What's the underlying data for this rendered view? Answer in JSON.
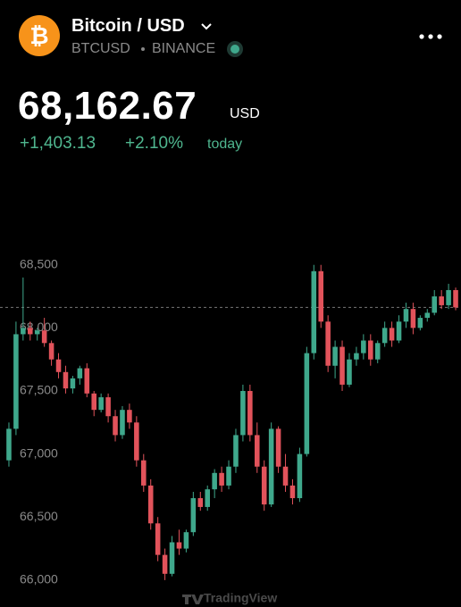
{
  "header": {
    "logo_symbol": "₿",
    "title": "Bitcoin / USD",
    "symbol": "BTCUSD",
    "exchange": "BINANCE",
    "price": "68,162.67",
    "currency": "USD",
    "change": "+1,403.13",
    "change_percent": "+2.10%",
    "period": "today"
  },
  "chart_data": {
    "type": "candlestick",
    "up_color": "#3fa88c",
    "down_color": "#e2535b",
    "price_line": 68162.67,
    "watermark": "TradingView",
    "ylim": [
      65900,
      68760
    ],
    "yticks": [
      {
        "value": 66000,
        "label": "66,000"
      },
      {
        "value": 66500,
        "label": "66,500"
      },
      {
        "value": 67000,
        "label": "67,000"
      },
      {
        "value": 67500,
        "label": "67,500"
      },
      {
        "value": 68000,
        "label": "68,000"
      },
      {
        "value": 68500,
        "label": "68,500"
      }
    ],
    "open": [
      66950,
      67200,
      67950,
      68000,
      67950,
      67980,
      67880,
      67750,
      67650,
      67520,
      67600,
      67680,
      67480,
      67350,
      67450,
      67300,
      67150,
      67350,
      67250,
      66950,
      66750,
      66450,
      66200,
      66050,
      66300,
      66250,
      66380,
      66650,
      66580,
      66720,
      66850,
      66750,
      66900,
      67150,
      67500,
      67150,
      66900,
      66600,
      67200,
      66900,
      66750,
      66650,
      67000,
      67800,
      68450,
      68050,
      67700,
      67850,
      67550,
      67750,
      67800,
      67900,
      67750,
      67880,
      68000,
      67900,
      68050,
      68150,
      68000,
      68080,
      68120,
      68250,
      68180,
      68300
    ],
    "high": [
      67250,
      68050,
      68400,
      68050,
      68000,
      68080,
      67900,
      67800,
      67700,
      67620,
      67700,
      67720,
      67500,
      67480,
      67480,
      67350,
      67380,
      67400,
      67300,
      67000,
      66800,
      66500,
      66250,
      66350,
      66400,
      66400,
      66700,
      66700,
      66750,
      66880,
      66900,
      66950,
      67200,
      67550,
      67550,
      67250,
      66950,
      67250,
      67220,
      67000,
      66800,
      67050,
      67850,
      68500,
      68500,
      68100,
      67900,
      67900,
      67800,
      67850,
      67950,
      67950,
      67900,
      68050,
      68050,
      68100,
      68200,
      68200,
      68100,
      68150,
      68300,
      68300,
      68350,
      68320
    ],
    "low": [
      66900,
      67150,
      67900,
      67900,
      67900,
      67850,
      67700,
      67600,
      67480,
      67480,
      67550,
      67450,
      67300,
      67330,
      67250,
      67100,
      67120,
      67200,
      66900,
      66700,
      66400,
      66150,
      66000,
      66030,
      66200,
      66220,
      66350,
      66550,
      66550,
      66650,
      66700,
      66720,
      66850,
      67100,
      67100,
      66850,
      66550,
      66580,
      66850,
      66700,
      66600,
      66620,
      66980,
      67750,
      68000,
      67650,
      67600,
      67500,
      67530,
      67700,
      67750,
      67700,
      67720,
      67850,
      67850,
      67880,
      68000,
      67950,
      67980,
      68050,
      68100,
      68150,
      68150,
      68140
    ],
    "close": [
      67200,
      67950,
      68000,
      67950,
      67980,
      67880,
      67750,
      67650,
      67520,
      67600,
      67680,
      67480,
      67350,
      67450,
      67300,
      67150,
      67350,
      67250,
      66950,
      66750,
      66450,
      66200,
      66050,
      66300,
      66250,
      66380,
      66650,
      66580,
      66720,
      66850,
      66750,
      66900,
      67150,
      67500,
      67150,
      66900,
      66600,
      67200,
      66900,
      66750,
      66650,
      67000,
      67800,
      68450,
      68050,
      67700,
      67850,
      67550,
      67750,
      67800,
      67900,
      67750,
      67880,
      68000,
      67900,
      68050,
      68150,
      68000,
      68080,
      68120,
      68250,
      68180,
      68300,
      68162.67
    ]
  }
}
